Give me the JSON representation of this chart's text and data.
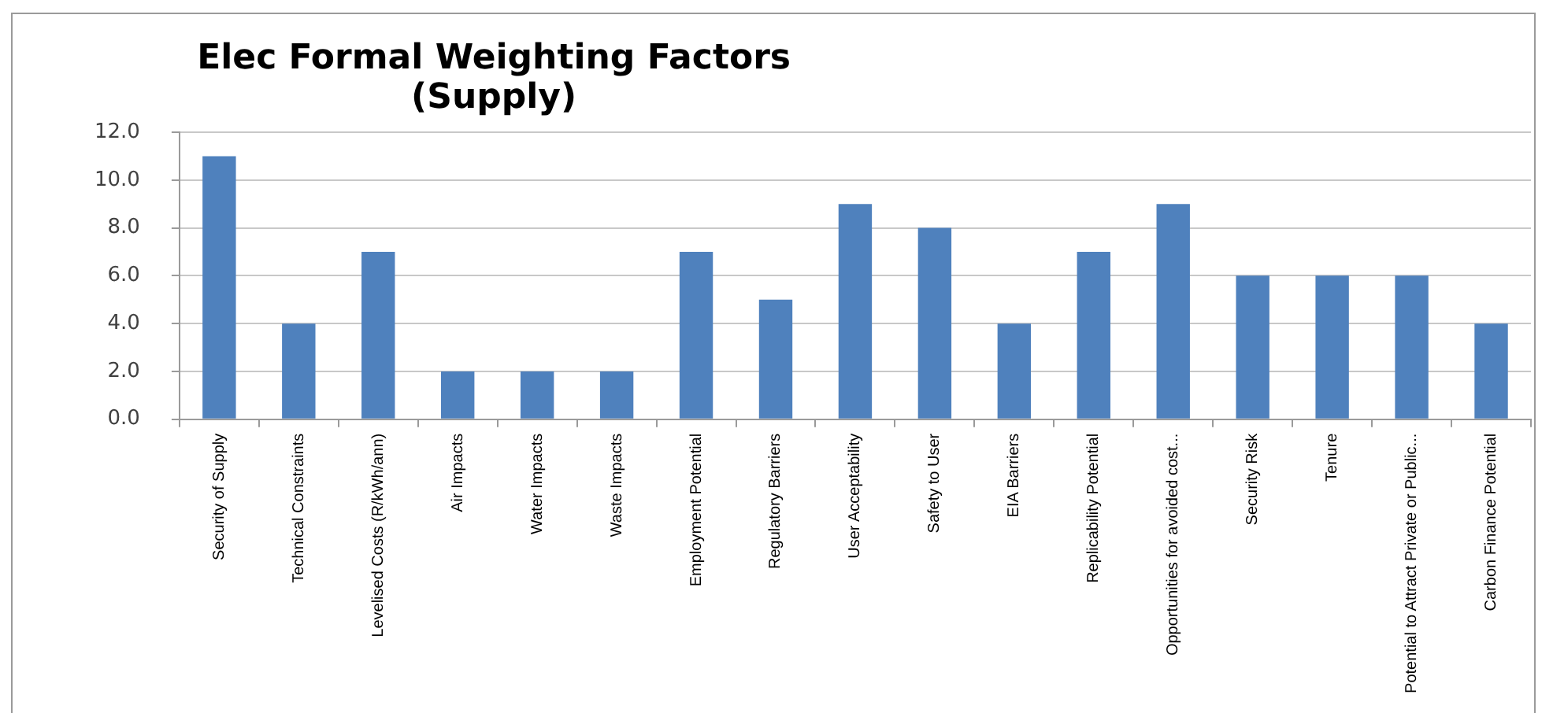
{
  "chart_data": {
    "type": "bar",
    "title": "Elec Formal Weighting Factors (Supply)",
    "categories": [
      "Security of Supply",
      "Technical Constraints",
      "Levelised Costs (R/kWh/ann)",
      "Air Impacts",
      "Water Impacts",
      "Waste Impacts",
      "Employment Potential",
      "Regulatory Barriers",
      "User Acceptability",
      "Safety to User",
      "EIA Barriers",
      "Replicability Potential",
      "Opportunities for avoided cost...",
      "Security Risk",
      "Tenure",
      "Potential to Attract Private or Public...",
      "Carbon Finance Potential"
    ],
    "values": [
      11,
      4,
      7,
      2,
      2,
      2,
      7,
      5,
      9,
      8,
      4,
      7,
      9,
      6,
      6,
      6,
      4
    ],
    "color": "#4f81bd",
    "ylim": [
      0,
      12
    ],
    "yticks": [
      {
        "value": 0,
        "label": "0.0"
      },
      {
        "value": 2,
        "label": "2.0"
      },
      {
        "value": 4,
        "label": "4.0"
      },
      {
        "value": 6,
        "label": "6.0"
      },
      {
        "value": 8,
        "label": "8.0"
      },
      {
        "value": 10,
        "label": "10.0"
      },
      {
        "value": 12,
        "label": "12.0"
      }
    ],
    "grid": "y"
  }
}
